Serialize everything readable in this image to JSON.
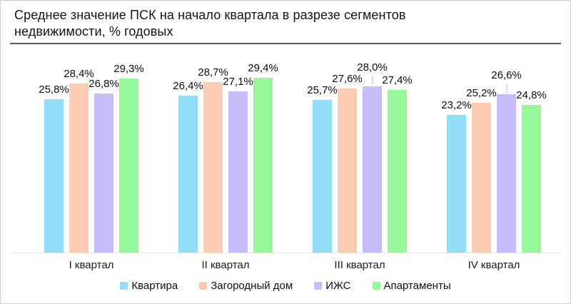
{
  "header": {
    "title": "Среднее значение ПСК на начало квартала в разрезе сегментов недвижимости, % годовых",
    "title_lines": [
      "Среднее значение ПСК на начало квартала в разрезе сегментов",
      "недвижимости, % годовых"
    ]
  },
  "chart_data": {
    "type": "bar",
    "title": "Среднее значение ПСК на начало квартала в разрезе сегментов недвижимости, % годовых",
    "xlabel": "",
    "ylabel": "% годовых",
    "categories": [
      "I квартал",
      "II квартал",
      "III квартал",
      "IV квартал"
    ],
    "series": [
      {
        "name": "Квартира",
        "color": "#93DDFB",
        "values": [
          25.8,
          26.4,
          25.7,
          23.2
        ],
        "labels": [
          "25,8%",
          "26,4%",
          "25,7%",
          "23,2%"
        ],
        "raised_labels": [
          false,
          false,
          false,
          false
        ]
      },
      {
        "name": "Загородный дом",
        "color": "#FCCBB2",
        "values": [
          28.4,
          28.7,
          27.6,
          25.2
        ],
        "labels": [
          "28,4%",
          "28,7%",
          "27,6%",
          "25,2%"
        ],
        "raised_labels": [
          false,
          false,
          false,
          false
        ]
      },
      {
        "name": "ИЖС",
        "color": "#C6BEFB",
        "values": [
          26.8,
          27.1,
          28.0,
          26.6
        ],
        "labels": [
          "26,8%",
          "27,1%",
          "28,0%",
          "26,6%"
        ],
        "raised_labels": [
          false,
          false,
          true,
          true
        ]
      },
      {
        "name": "Апартаменты",
        "color": "#97F79B",
        "values": [
          29.3,
          29.4,
          27.4,
          24.8
        ],
        "labels": [
          "29,3%",
          "29,4%",
          "27,4%",
          "24,8%"
        ],
        "raised_labels": [
          false,
          false,
          false,
          false
        ]
      }
    ],
    "ylim": [
      0,
      35
    ],
    "grid": false,
    "value_suffix": "%",
    "decimal_separator": ",",
    "legend_position": "bottom"
  }
}
